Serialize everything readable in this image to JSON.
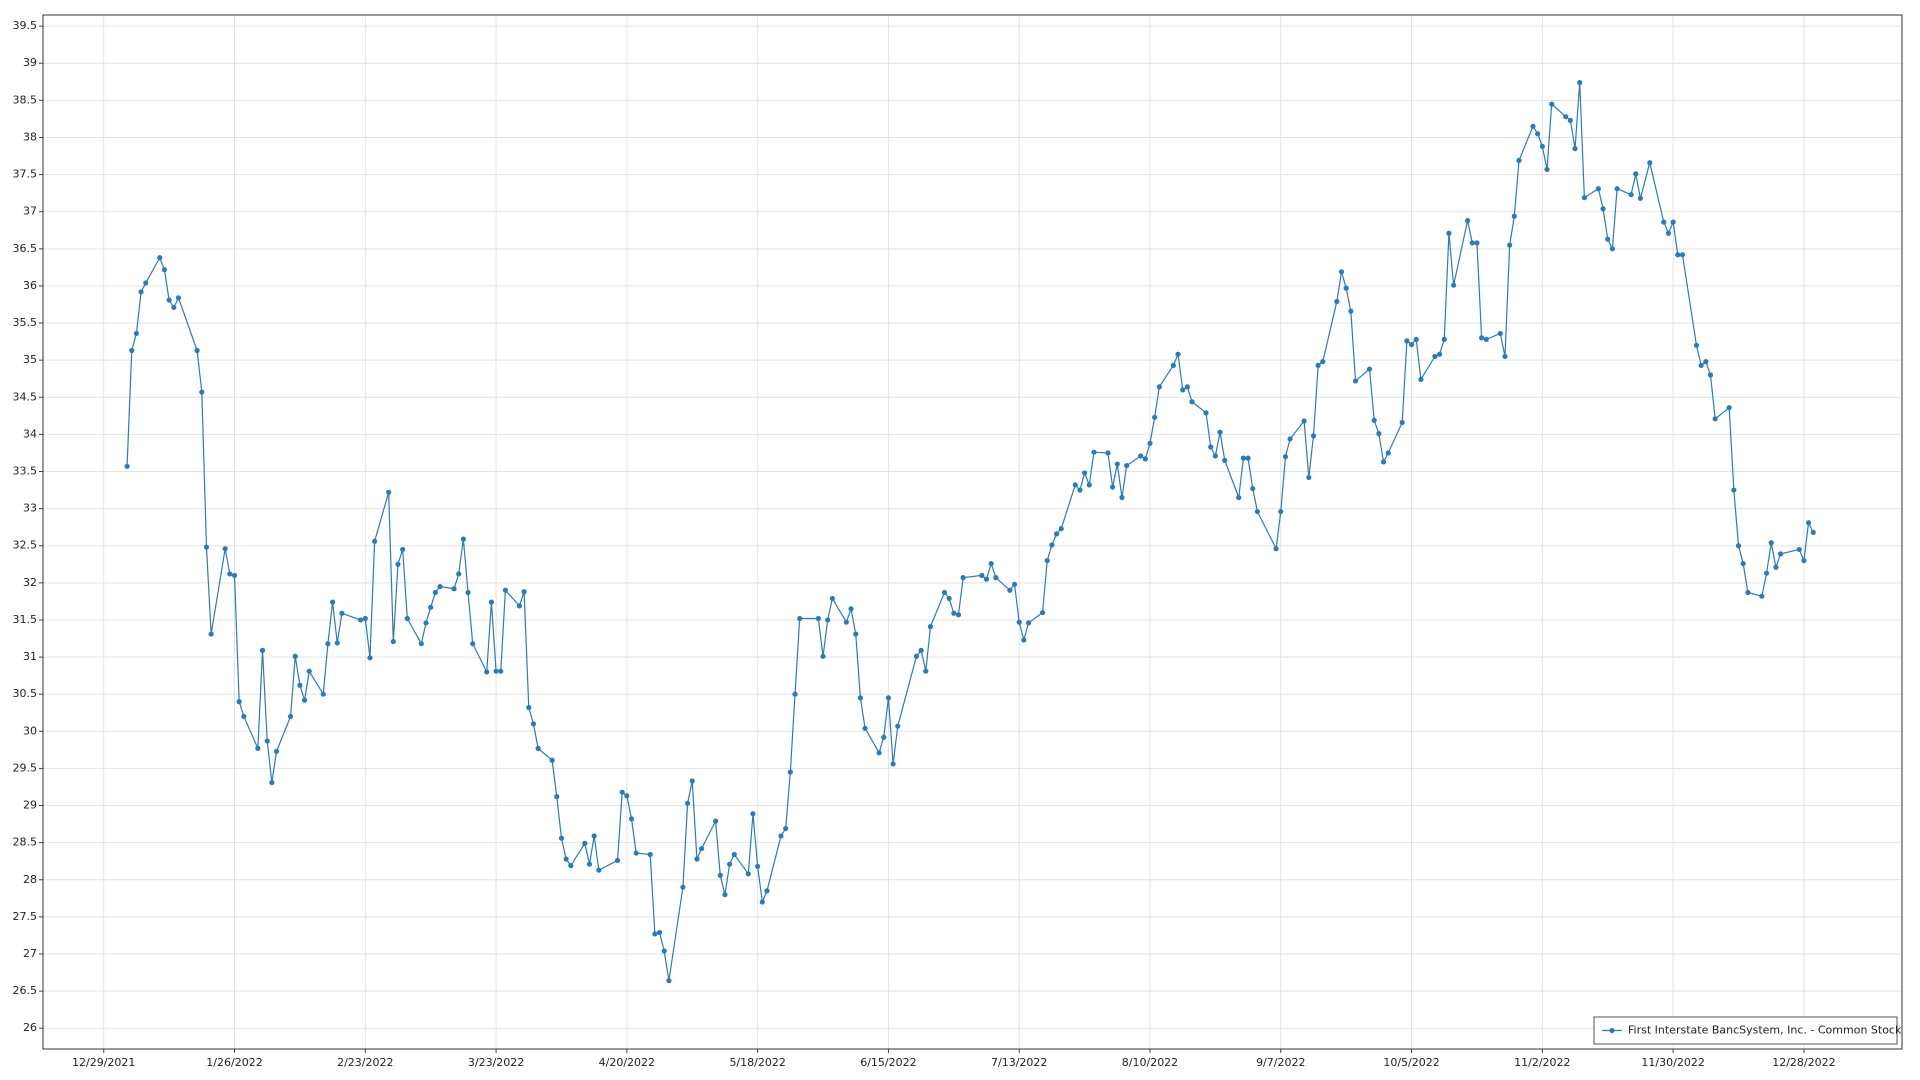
{
  "chart_data": {
    "type": "line",
    "x": [
      "2022-01-03",
      "2022-01-04",
      "2022-01-05",
      "2022-01-06",
      "2022-01-07",
      "2022-01-10",
      "2022-01-11",
      "2022-01-12",
      "2022-01-13",
      "2022-01-14",
      "2022-01-18",
      "2022-01-19",
      "2022-01-20",
      "2022-01-21",
      "2022-01-24",
      "2022-01-25",
      "2022-01-26",
      "2022-01-27",
      "2022-01-28",
      "2022-01-31",
      "2022-02-01",
      "2022-02-02",
      "2022-02-03",
      "2022-02-04",
      "2022-02-07",
      "2022-02-08",
      "2022-02-09",
      "2022-02-10",
      "2022-02-11",
      "2022-02-14",
      "2022-02-15",
      "2022-02-16",
      "2022-02-17",
      "2022-02-18",
      "2022-02-22",
      "2022-02-23",
      "2022-02-24",
      "2022-02-25",
      "2022-02-28",
      "2022-03-01",
      "2022-03-02",
      "2022-03-03",
      "2022-03-04",
      "2022-03-07",
      "2022-03-08",
      "2022-03-09",
      "2022-03-10",
      "2022-03-11",
      "2022-03-14",
      "2022-03-15",
      "2022-03-16",
      "2022-03-17",
      "2022-03-18",
      "2022-03-21",
      "2022-03-22",
      "2022-03-23",
      "2022-03-24",
      "2022-03-25",
      "2022-03-28",
      "2022-03-29",
      "2022-03-30",
      "2022-03-31",
      "2022-04-01",
      "2022-04-04",
      "2022-04-05",
      "2022-04-06",
      "2022-04-07",
      "2022-04-08",
      "2022-04-11",
      "2022-04-12",
      "2022-04-13",
      "2022-04-14",
      "2022-04-18",
      "2022-04-19",
      "2022-04-20",
      "2022-04-21",
      "2022-04-22",
      "2022-04-25",
      "2022-04-26",
      "2022-04-27",
      "2022-04-28",
      "2022-04-29",
      "2022-05-02",
      "2022-05-03",
      "2022-05-04",
      "2022-05-05",
      "2022-05-06",
      "2022-05-09",
      "2022-05-10",
      "2022-05-11",
      "2022-05-12",
      "2022-05-13",
      "2022-05-16",
      "2022-05-17",
      "2022-05-18",
      "2022-05-19",
      "2022-05-20",
      "2022-05-23",
      "2022-05-24",
      "2022-05-25",
      "2022-05-26",
      "2022-05-27",
      "2022-05-31",
      "2022-06-01",
      "2022-06-02",
      "2022-06-03",
      "2022-06-06",
      "2022-06-07",
      "2022-06-08",
      "2022-06-09",
      "2022-06-10",
      "2022-06-13",
      "2022-06-14",
      "2022-06-15",
      "2022-06-16",
      "2022-06-17",
      "2022-06-21",
      "2022-06-22",
      "2022-06-23",
      "2022-06-24",
      "2022-06-27",
      "2022-06-28",
      "2022-06-29",
      "2022-06-30",
      "2022-07-01",
      "2022-07-05",
      "2022-07-06",
      "2022-07-07",
      "2022-07-08",
      "2022-07-11",
      "2022-07-12",
      "2022-07-13",
      "2022-07-14",
      "2022-07-15",
      "2022-07-18",
      "2022-07-19",
      "2022-07-20",
      "2022-07-21",
      "2022-07-22",
      "2022-07-25",
      "2022-07-26",
      "2022-07-27",
      "2022-07-28",
      "2022-07-29",
      "2022-08-01",
      "2022-08-02",
      "2022-08-03",
      "2022-08-04",
      "2022-08-05",
      "2022-08-08",
      "2022-08-09",
      "2022-08-10",
      "2022-08-11",
      "2022-08-12",
      "2022-08-15",
      "2022-08-16",
      "2022-08-17",
      "2022-08-18",
      "2022-08-19",
      "2022-08-22",
      "2022-08-23",
      "2022-08-24",
      "2022-08-25",
      "2022-08-26",
      "2022-08-29",
      "2022-08-30",
      "2022-08-31",
      "2022-09-01",
      "2022-09-02",
      "2022-09-06",
      "2022-09-07",
      "2022-09-08",
      "2022-09-09",
      "2022-09-12",
      "2022-09-13",
      "2022-09-14",
      "2022-09-15",
      "2022-09-16",
      "2022-09-19",
      "2022-09-20",
      "2022-09-21",
      "2022-09-22",
      "2022-09-23",
      "2022-09-26",
      "2022-09-27",
      "2022-09-28",
      "2022-09-29",
      "2022-09-30",
      "2022-10-03",
      "2022-10-04",
      "2022-10-05",
      "2022-10-06",
      "2022-10-07",
      "2022-10-10",
      "2022-10-11",
      "2022-10-12",
      "2022-10-13",
      "2022-10-14",
      "2022-10-17",
      "2022-10-18",
      "2022-10-19",
      "2022-10-20",
      "2022-10-21",
      "2022-10-24",
      "2022-10-25",
      "2022-10-26",
      "2022-10-27",
      "2022-10-28",
      "2022-10-31",
      "2022-11-01",
      "2022-11-02",
      "2022-11-03",
      "2022-11-04",
      "2022-11-07",
      "2022-11-08",
      "2022-11-09",
      "2022-11-10",
      "2022-11-11",
      "2022-11-14",
      "2022-11-15",
      "2022-11-16",
      "2022-11-17",
      "2022-11-18",
      "2022-11-21",
      "2022-11-22",
      "2022-11-23",
      "2022-11-25",
      "2022-11-28",
      "2022-11-29",
      "2022-11-30",
      "2022-12-01",
      "2022-12-02",
      "2022-12-05",
      "2022-12-06",
      "2022-12-07",
      "2022-12-08",
      "2022-12-09",
      "2022-12-12",
      "2022-12-13",
      "2022-12-14",
      "2022-12-15",
      "2022-12-16",
      "2022-12-19",
      "2022-12-20",
      "2022-12-21",
      "2022-12-22",
      "2022-12-23",
      "2022-12-27",
      "2022-12-28",
      "2022-12-29",
      "2022-12-30"
    ],
    "series": [
      {
        "name": "First Interstate BancSystem, Inc. - Common Stock",
        "color": "#2b7bb9",
        "values": [
          33.57,
          35.13,
          35.36,
          35.92,
          36.04,
          36.38,
          36.22,
          35.81,
          35.71,
          35.84,
          35.13,
          34.57,
          32.48,
          31.31,
          32.46,
          32.12,
          32.1,
          30.4,
          30.2,
          29.77,
          31.09,
          29.87,
          29.31,
          29.73,
          30.2,
          31.01,
          30.62,
          30.42,
          30.81,
          30.5,
          31.18,
          31.74,
          31.19,
          31.59,
          31.5,
          31.52,
          30.99,
          32.56,
          33.22,
          31.21,
          32.25,
          32.45,
          31.52,
          31.18,
          31.46,
          31.67,
          31.87,
          31.95,
          31.92,
          32.12,
          32.59,
          31.87,
          31.18,
          30.8,
          31.74,
          30.81,
          30.81,
          31.9,
          31.69,
          31.88,
          30.32,
          30.1,
          29.77,
          29.61,
          29.12,
          28.56,
          28.28,
          28.19,
          28.49,
          28.21,
          28.59,
          28.13,
          28.26,
          29.18,
          29.13,
          28.82,
          28.36,
          28.34,
          27.27,
          27.29,
          27.04,
          26.64,
          27.9,
          29.03,
          29.33,
          28.28,
          28.42,
          28.79,
          28.06,
          27.8,
          28.21,
          28.34,
          28.08,
          28.89,
          28.18,
          27.7,
          27.85,
          28.59,
          28.69,
          29.45,
          30.5,
          31.52,
          31.52,
          31.01,
          31.5,
          31.79,
          31.47,
          31.65,
          31.31,
          30.45,
          30.04,
          29.71,
          29.92,
          30.45,
          29.56,
          30.07,
          31.01,
          31.09,
          30.81,
          31.41,
          31.87,
          31.79,
          31.59,
          31.57,
          32.07,
          32.1,
          32.05,
          32.26,
          32.07,
          31.9,
          31.98,
          31.47,
          31.23,
          31.46,
          31.6,
          32.3,
          32.51,
          32.66,
          32.73,
          33.32,
          33.25,
          33.48,
          33.32,
          33.76,
          33.75,
          33.29,
          33.6,
          33.15,
          33.58,
          33.71,
          33.67,
          33.88,
          34.23,
          34.64,
          34.93,
          35.08,
          34.6,
          34.64,
          34.44,
          34.29,
          33.83,
          33.71,
          34.03,
          33.65,
          33.15,
          33.68,
          33.68,
          33.27,
          32.96,
          32.46,
          32.96,
          33.7,
          33.94,
          34.18,
          33.42,
          33.98,
          34.93,
          34.98,
          35.79,
          36.19,
          35.97,
          35.66,
          34.72,
          34.88,
          34.19,
          34.01,
          33.63,
          33.75,
          34.16,
          35.26,
          35.21,
          35.28,
          34.74,
          35.05,
          35.08,
          35.28,
          36.71,
          36.01,
          36.88,
          36.58,
          36.58,
          35.3,
          35.28,
          35.36,
          35.05,
          36.55,
          36.94,
          37.69,
          38.15,
          38.05,
          37.88,
          37.57,
          38.45,
          38.28,
          38.23,
          37.85,
          38.74,
          37.19,
          37.31,
          37.04,
          36.63,
          36.5,
          37.31,
          37.23,
          37.51,
          37.18,
          37.66,
          36.86,
          36.71,
          36.86,
          36.42,
          36.42,
          35.2,
          34.93,
          34.98,
          34.8,
          34.21,
          34.36,
          33.25,
          32.5,
          32.26,
          31.87,
          31.82,
          32.13,
          32.54,
          32.21,
          32.39,
          32.45,
          32.3,
          32.81,
          32.68
        ]
      }
    ],
    "xlim": [
      "2021-12-16",
      "2023-01-18"
    ],
    "xticks": [
      {
        "value": "2021-12-29",
        "label": "12/29/2021"
      },
      {
        "value": "2022-01-26",
        "label": "1/26/2022"
      },
      {
        "value": "2022-02-23",
        "label": "2/23/2022"
      },
      {
        "value": "2022-03-23",
        "label": "3/23/2022"
      },
      {
        "value": "2022-04-20",
        "label": "4/20/2022"
      },
      {
        "value": "2022-05-18",
        "label": "5/18/2022"
      },
      {
        "value": "2022-06-15",
        "label": "6/15/2022"
      },
      {
        "value": "2022-07-13",
        "label": "7/13/2022"
      },
      {
        "value": "2022-08-10",
        "label": "8/10/2022"
      },
      {
        "value": "2022-09-07",
        "label": "9/7/2022"
      },
      {
        "value": "2022-10-05",
        "label": "10/5/2022"
      },
      {
        "value": "2022-11-02",
        "label": "11/2/2022"
      },
      {
        "value": "2022-11-30",
        "label": "11/30/2022"
      },
      {
        "value": "2022-12-28",
        "label": "12/28/2022"
      }
    ],
    "ylim": [
      25.72,
      39.65
    ],
    "yticks": [
      26,
      26.5,
      27,
      27.5,
      28,
      28.5,
      29,
      29.5,
      30,
      30.5,
      31,
      31.5,
      32,
      32.5,
      33,
      33.5,
      34,
      34.5,
      35,
      35.5,
      36,
      36.5,
      37,
      37.5,
      38,
      38.5,
      39,
      39.5
    ],
    "grid": true,
    "legend": "lower right"
  }
}
